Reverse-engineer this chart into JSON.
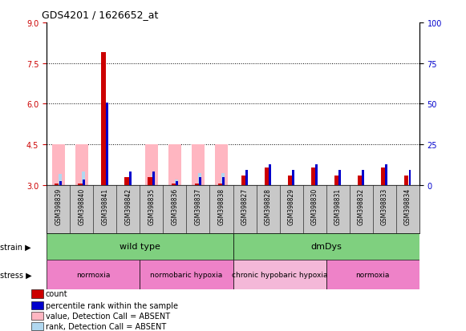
{
  "title": "GDS4201 / 1626652_at",
  "samples": [
    "GSM398839",
    "GSM398840",
    "GSM398841",
    "GSM398842",
    "GSM398835",
    "GSM398836",
    "GSM398837",
    "GSM398838",
    "GSM398827",
    "GSM398828",
    "GSM398829",
    "GSM398830",
    "GSM398831",
    "GSM398832",
    "GSM398833",
    "GSM398834"
  ],
  "red_values": [
    3.05,
    3.05,
    7.9,
    3.3,
    3.3,
    3.05,
    3.05,
    3.05,
    3.35,
    3.65,
    3.35,
    3.65,
    3.35,
    3.35,
    3.65,
    3.35
  ],
  "blue_values": [
    3.15,
    3.2,
    6.05,
    3.5,
    3.5,
    3.15,
    3.3,
    3.3,
    3.55,
    3.75,
    3.55,
    3.75,
    3.55,
    3.55,
    3.75,
    3.55
  ],
  "pink_values": [
    4.5,
    4.5,
    0,
    0,
    4.5,
    4.5,
    4.5,
    4.5,
    0,
    0,
    0,
    0,
    0,
    0,
    0,
    0
  ],
  "lightblue_values": [
    3.4,
    3.5,
    0,
    0,
    3.4,
    3.2,
    3.45,
    3.45,
    0,
    0,
    0,
    0,
    0,
    0,
    0,
    0
  ],
  "absent": [
    true,
    true,
    false,
    false,
    true,
    true,
    true,
    true,
    false,
    false,
    false,
    false,
    false,
    false,
    false,
    false
  ],
  "ylim_left": [
    3,
    9
  ],
  "ylim_right": [
    0,
    100
  ],
  "yticks_left": [
    3,
    4.5,
    6,
    7.5,
    9
  ],
  "yticks_right": [
    0,
    25,
    50,
    75,
    100
  ],
  "gridlines": [
    4.5,
    6.0,
    7.5
  ],
  "strain_groups": [
    {
      "label": "wild type",
      "start": 0,
      "end": 8,
      "color": "#7FD07F"
    },
    {
      "label": "dmDys",
      "start": 8,
      "end": 16,
      "color": "#7FD07F"
    }
  ],
  "stress_groups": [
    {
      "label": "normoxia",
      "start": 0,
      "end": 4,
      "color": "#EE82C8"
    },
    {
      "label": "normobaric hypoxia",
      "start": 4,
      "end": 8,
      "color": "#EE82C8"
    },
    {
      "label": "chronic hypobaric hypoxia",
      "start": 8,
      "end": 12,
      "color": "#F4B8D8"
    },
    {
      "label": "normoxia",
      "start": 12,
      "end": 16,
      "color": "#EE82C8"
    }
  ],
  "legend_items": [
    {
      "color": "#CC0000",
      "label": "count"
    },
    {
      "color": "#0000CC",
      "label": "percentile rank within the sample"
    },
    {
      "color": "#FFB6C1",
      "label": "value, Detection Call = ABSENT"
    },
    {
      "color": "#B0D8F0",
      "label": "rank, Detection Call = ABSENT"
    }
  ],
  "left_tick_color": "#CC0000",
  "right_tick_color": "#0000CC",
  "gray_label_bg": "#C8C8C8"
}
